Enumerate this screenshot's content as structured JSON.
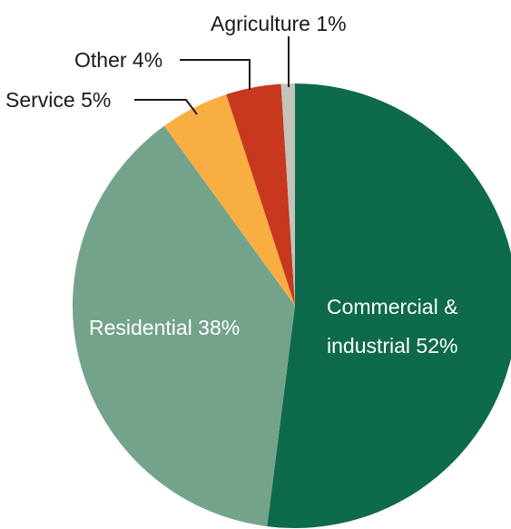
{
  "chart_data": {
    "type": "pie",
    "slices": [
      {
        "key": "commercial",
        "label": "Commercial &",
        "label_line2": "industrial 52%",
        "value": 52,
        "color": "#0e6a4c",
        "label_placement": "inside"
      },
      {
        "key": "residential",
        "label": "Residential 38%",
        "value": 38,
        "color": "#74a38b",
        "label_placement": "inside"
      },
      {
        "key": "service",
        "label": "Service 5%",
        "value": 5,
        "color": "#f9ae42",
        "label_placement": "outside"
      },
      {
        "key": "other",
        "label": "Other 4%",
        "value": 4,
        "color": "#c7381e",
        "label_placement": "outside"
      },
      {
        "key": "agriculture",
        "label": "Agriculture 1%",
        "value": 1,
        "color": "#c3c3b9",
        "label_placement": "outside"
      }
    ],
    "start": "12 o'clock",
    "direction": "clockwise",
    "legend": "none"
  }
}
